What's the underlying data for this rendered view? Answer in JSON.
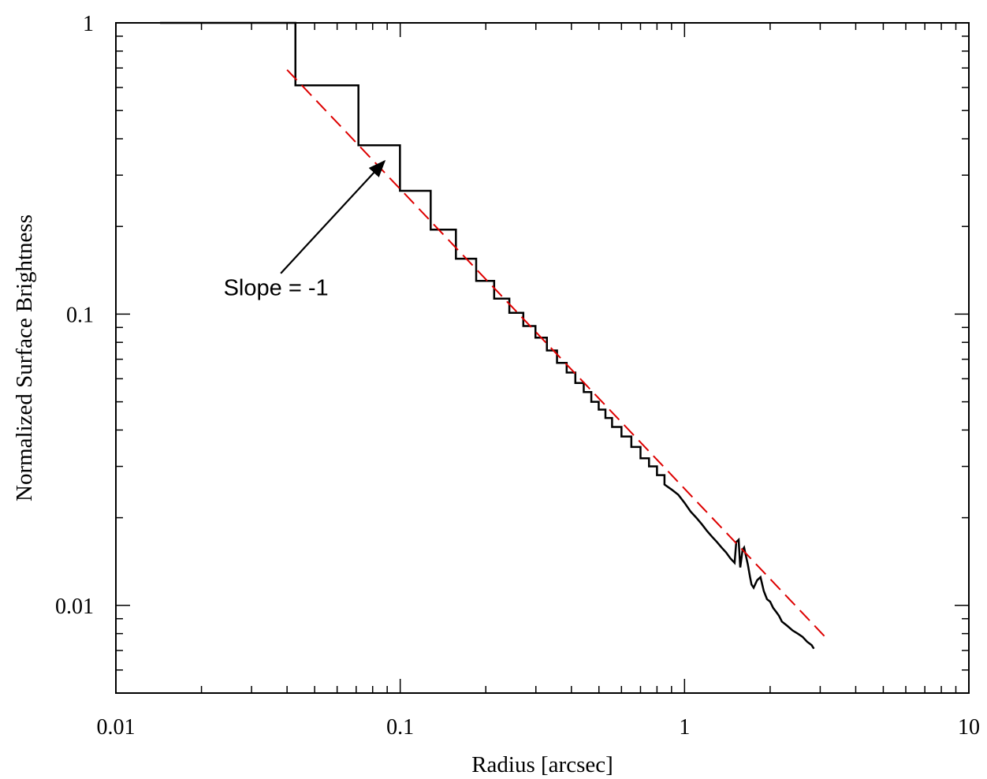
{
  "chart_data": {
    "type": "line",
    "title": "",
    "xlabel": "Radius [arcsec]",
    "ylabel": "Normalized Surface Brightness",
    "xscale": "log",
    "yscale": "log",
    "xlim": [
      0.01,
      10
    ],
    "ylim": [
      0.005,
      1
    ],
    "grid": false,
    "legend": "none",
    "x_ticks": [
      {
        "value": 0.01,
        "label": "0.01"
      },
      {
        "value": 0.1,
        "label": "0.1"
      },
      {
        "value": 1,
        "label": "1"
      },
      {
        "value": 10,
        "label": "10"
      }
    ],
    "y_ticks": [
      {
        "value": 0.01,
        "label": "0.01"
      },
      {
        "value": 0.1,
        "label": "0.1"
      },
      {
        "value": 1,
        "label": "1"
      }
    ],
    "series": [
      {
        "style": "step",
        "color": "#000000",
        "x": [
          0.0143,
          0.0428,
          0.0428,
          0.0713,
          0.0713,
          0.0998,
          0.0998,
          0.128,
          0.128,
          0.157,
          0.157,
          0.185,
          0.185,
          0.214,
          0.214,
          0.242,
          0.242,
          0.271,
          0.271,
          0.299,
          0.299,
          0.328,
          0.328,
          0.356,
          0.356,
          0.385,
          0.385,
          0.413,
          0.413,
          0.442,
          0.442,
          0.47,
          0.47,
          0.499,
          0.499,
          0.527,
          0.527,
          0.556,
          0.556,
          0.6,
          0.6,
          0.65,
          0.65,
          0.7,
          0.7,
          0.75,
          0.75,
          0.8,
          0.8,
          0.85,
          0.85,
          0.9,
          0.95,
          1.0,
          1.05,
          1.1,
          1.15,
          1.2,
          1.25,
          1.3,
          1.35,
          1.4,
          1.45,
          1.5,
          1.52,
          1.55,
          1.57,
          1.6,
          1.62,
          1.67,
          1.7,
          1.72,
          1.75,
          1.8,
          1.85,
          1.9,
          1.95,
          2.0,
          2.05,
          2.1,
          2.15,
          2.2,
          2.3,
          2.4,
          2.5,
          2.6,
          2.7,
          2.8,
          2.85
        ],
        "y": [
          1.0,
          1.0,
          0.61,
          0.61,
          0.38,
          0.38,
          0.265,
          0.265,
          0.195,
          0.195,
          0.155,
          0.155,
          0.13,
          0.13,
          0.113,
          0.113,
          0.101,
          0.101,
          0.091,
          0.091,
          0.083,
          0.083,
          0.075,
          0.075,
          0.068,
          0.068,
          0.063,
          0.063,
          0.058,
          0.058,
          0.054,
          0.054,
          0.05,
          0.05,
          0.047,
          0.047,
          0.044,
          0.044,
          0.041,
          0.041,
          0.038,
          0.038,
          0.035,
          0.035,
          0.032,
          0.032,
          0.03,
          0.03,
          0.028,
          0.028,
          0.026,
          0.025,
          0.024,
          0.0225,
          0.021,
          0.02,
          0.019,
          0.018,
          0.0172,
          0.0165,
          0.0158,
          0.0152,
          0.0145,
          0.014,
          0.0165,
          0.0168,
          0.0135,
          0.0155,
          0.0158,
          0.0138,
          0.0125,
          0.0118,
          0.0115,
          0.0122,
          0.0125,
          0.0112,
          0.0105,
          0.0103,
          0.0098,
          0.0095,
          0.0092,
          0.0088,
          0.0085,
          0.0082,
          0.008,
          0.0078,
          0.0075,
          0.0073,
          0.0071
        ]
      },
      {
        "style": "dashed",
        "color": "#dd0000",
        "x": [
          0.04,
          3.2
        ],
        "y": [
          0.69,
          0.0076
        ]
      }
    ],
    "annotations": [
      {
        "text": "Slope = -1",
        "arrow_from": {
          "x": 0.038,
          "y": 0.138
        },
        "arrow_to": {
          "x": 0.088,
          "y": 0.335
        }
      }
    ]
  }
}
